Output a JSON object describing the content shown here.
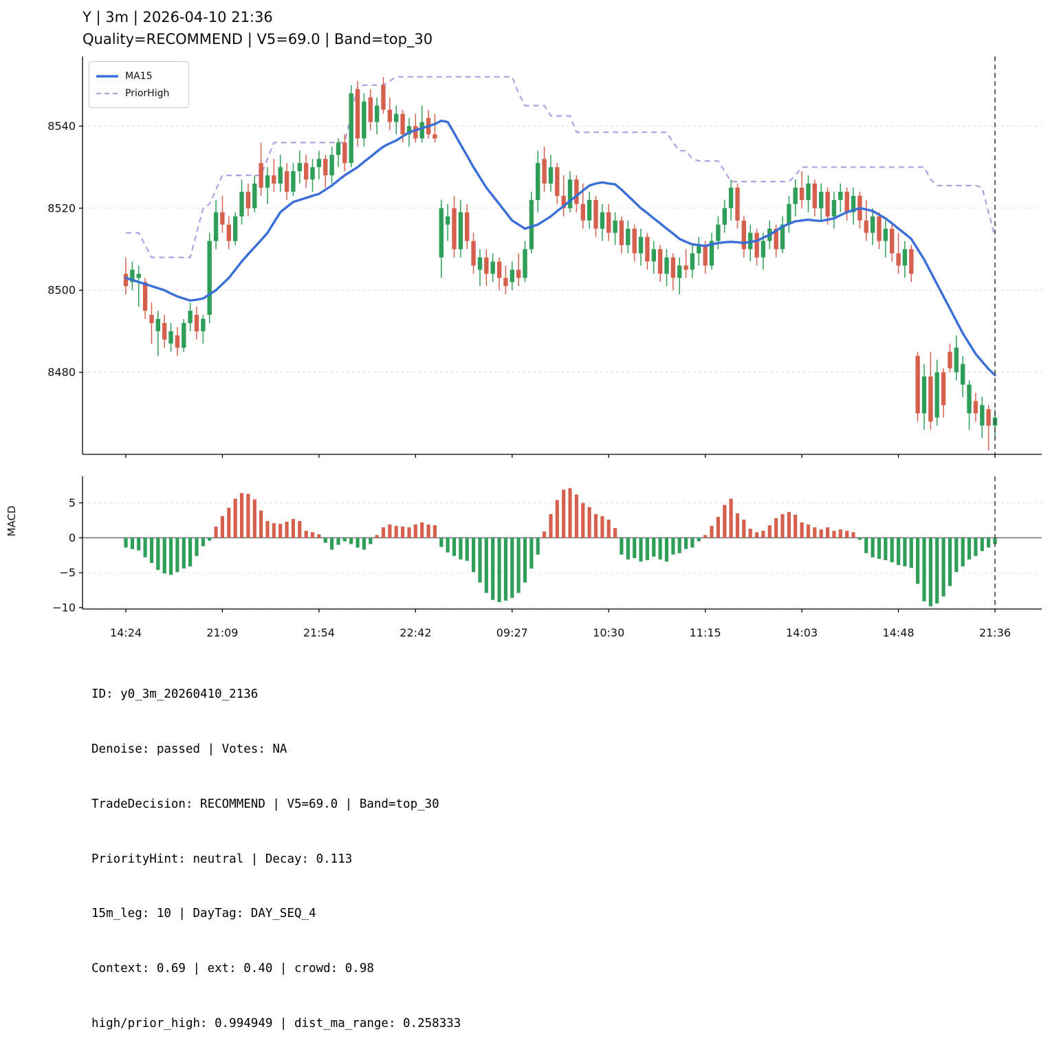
{
  "title": "Y | 3m | 2026-04-10 21:36",
  "subtitle": "Quality=RECOMMEND | V5=69.0 | Band=top_30",
  "legend": {
    "ma15_label": "MA15",
    "prior_high_label": "PriorHigh"
  },
  "footer": {
    "lines": [
      "ID: y0_3m_20260410_2136",
      "Denoise: passed | Votes: NA",
      "TradeDecision: RECOMMEND | V5=69.0 | Band=top_30",
      "PriorityHint: neutral | Decay: 0.113",
      "15m_leg: 10 | DayTag: DAY_SEQ_4",
      "Context: 0.69 | ext: 0.40 | crowd: 0.98",
      "high/prior_high: 0.994949 | dist_ma_range: 0.258333"
    ]
  },
  "colors": {
    "up": "#2f9e58",
    "down": "#d5604e",
    "ma15": "#3a6fd8",
    "prior_high": "#b49de0",
    "grid": "#dcdcdc",
    "zero_line": "#808080",
    "vline": "#3f3f3f",
    "axis": "#000000"
  },
  "chart_data": {
    "type": "candlestick+macd",
    "title": "Y | 3m | 2026-04-10 21:36",
    "macd_label": "MACD",
    "x_tick_labels": [
      "14:24",
      "21:09",
      "21:54",
      "22:42",
      "09:27",
      "10:30",
      "11:15",
      "14:03",
      "14:48",
      "21:36"
    ],
    "x_tick_indices": [
      0,
      15,
      30,
      45,
      60,
      75,
      90,
      105,
      120,
      135
    ],
    "price_axis": {
      "ticks": [
        8480,
        8500,
        8520,
        8540
      ],
      "ylim": [
        8460,
        8557
      ],
      "grid": true
    },
    "macd_axis": {
      "ticks": [
        -10,
        -5,
        0,
        5
      ],
      "ylim": [
        -10.2,
        8.8
      ],
      "grid": true
    },
    "legend_position": "upper-left",
    "last_bar_vline_index": 135,
    "candles": [
      [
        8504,
        8508,
        8499,
        8501
      ],
      [
        8502,
        8507,
        8500,
        8505
      ],
      [
        8503,
        8506,
        8496,
        8504
      ],
      [
        8502,
        8503,
        8493,
        8495
      ],
      [
        8494,
        8497,
        8487,
        8492
      ],
      [
        8490,
        8495,
        8484,
        8493
      ],
      [
        8492,
        8494,
        8486,
        8488
      ],
      [
        8487,
        8492,
        8485,
        8490
      ],
      [
        8489,
        8491,
        8484,
        8486
      ],
      [
        8486,
        8493,
        8485,
        8492
      ],
      [
        8492,
        8497,
        8490,
        8495
      ],
      [
        8494,
        8496,
        8488,
        8490
      ],
      [
        8490,
        8494,
        8487,
        8493
      ],
      [
        8494,
        8514,
        8492,
        8512
      ],
      [
        8512,
        8522,
        8510,
        8519
      ],
      [
        8519,
        8523,
        8514,
        8516
      ],
      [
        8516,
        8518,
        8510,
        8512
      ],
      [
        8512,
        8519,
        8511,
        8518
      ],
      [
        8518,
        8527,
        8516,
        8524
      ],
      [
        8524,
        8526,
        8518,
        8520
      ],
      [
        8520,
        8528,
        8519,
        8526
      ],
      [
        8531,
        8536,
        8523,
        8525
      ],
      [
        8525,
        8530,
        8521,
        8528
      ],
      [
        8528,
        8532,
        8524,
        8526
      ],
      [
        8526,
        8533,
        8524,
        8530
      ],
      [
        8529,
        8531,
        8522,
        8524
      ],
      [
        8524,
        8531,
        8523,
        8529
      ],
      [
        8529,
        8534,
        8526,
        8531
      ],
      [
        8531,
        8533,
        8525,
        8527
      ],
      [
        8527,
        8532,
        8524,
        8530
      ],
      [
        8530,
        8534,
        8527,
        8532
      ],
      [
        8532,
        8533,
        8525,
        8528
      ],
      [
        8528,
        8535,
        8526,
        8533
      ],
      [
        8533,
        8537,
        8530,
        8536
      ],
      [
        8536,
        8538,
        8529,
        8531
      ],
      [
        8531,
        8550,
        8530,
        8548
      ],
      [
        8549,
        8551,
        8535,
        8537
      ],
      [
        8537,
        8548,
        8535,
        8546
      ],
      [
        8547,
        8549,
        8539,
        8541
      ],
      [
        8541,
        8547,
        8538,
        8545
      ],
      [
        8550,
        8552,
        8543,
        8544
      ],
      [
        8544,
        8547,
        8539,
        8541
      ],
      [
        8541,
        8545,
        8538,
        8543
      ],
      [
        8543,
        8544,
        8536,
        8538
      ],
      [
        8538,
        8542,
        8535,
        8540
      ],
      [
        8540,
        8543,
        8536,
        8537
      ],
      [
        8537,
        8545,
        8536,
        8541
      ],
      [
        8542,
        8544,
        8537,
        8538
      ],
      [
        8538,
        8543,
        8536,
        8537
      ],
      [
        8508,
        8522,
        8503,
        8520
      ],
      [
        8516,
        8521,
        8512,
        8518
      ],
      [
        8520,
        8523,
        8508,
        8510
      ],
      [
        8510,
        8522,
        8508,
        8519
      ],
      [
        8519,
        8521,
        8510,
        8512
      ],
      [
        8512,
        8514,
        8504,
        8506
      ],
      [
        8505,
        8510,
        8501,
        8508
      ],
      [
        8508,
        8510,
        8501,
        8504
      ],
      [
        8504,
        8509,
        8502,
        8507
      ],
      [
        8507,
        8508,
        8500,
        8503
      ],
      [
        8503,
        8506,
        8499,
        8501
      ],
      [
        8502,
        8507,
        8500,
        8505
      ],
      [
        8505,
        8509,
        8501,
        8503
      ],
      [
        8503,
        8512,
        8502,
        8510
      ],
      [
        8510,
        8524,
        8509,
        8522
      ],
      [
        8522,
        8534,
        8519,
        8531
      ],
      [
        8532,
        8535,
        8524,
        8526
      ],
      [
        8526,
        8533,
        8524,
        8530
      ],
      [
        8530,
        8531,
        8521,
        8523
      ],
      [
        8523,
        8528,
        8518,
        8520
      ],
      [
        8520,
        8529,
        8519,
        8527
      ],
      [
        8527,
        8528,
        8519,
        8521
      ],
      [
        8521,
        8526,
        8515,
        8517
      ],
      [
        8517,
        8524,
        8515,
        8522
      ],
      [
        8522,
        8523,
        8513,
        8515
      ],
      [
        8515,
        8521,
        8512,
        8519
      ],
      [
        8519,
        8521,
        8512,
        8514
      ],
      [
        8514,
        8519,
        8511,
        8517
      ],
      [
        8517,
        8518,
        8509,
        8511
      ],
      [
        8511,
        8517,
        8509,
        8515
      ],
      [
        8515,
        8516,
        8507,
        8509
      ],
      [
        8509,
        8515,
        8506,
        8513
      ],
      [
        8513,
        8514,
        8505,
        8507
      ],
      [
        8507,
        8512,
        8504,
        8510
      ],
      [
        8510,
        8511,
        8502,
        8504
      ],
      [
        8504,
        8510,
        8501,
        8508
      ],
      [
        8508,
        8509,
        8500,
        8503
      ],
      [
        8503,
        8508,
        8499,
        8506
      ],
      [
        8506,
        8510,
        8503,
        8505
      ],
      [
        8505,
        8511,
        8503,
        8509
      ],
      [
        8509,
        8513,
        8506,
        8511
      ],
      [
        8511,
        8512,
        8504,
        8506
      ],
      [
        8506,
        8514,
        8505,
        8512
      ],
      [
        8512,
        8518,
        8510,
        8516
      ],
      [
        8516,
        8522,
        8514,
        8520
      ],
      [
        8520,
        8527,
        8517,
        8525
      ],
      [
        8525,
        8526,
        8515,
        8517
      ],
      [
        8517,
        8518,
        8508,
        8510
      ],
      [
        8510,
        8516,
        8507,
        8514
      ],
      [
        8514,
        8515,
        8506,
        8508
      ],
      [
        8508,
        8514,
        8505,
        8512
      ],
      [
        8512,
        8517,
        8510,
        8515
      ],
      [
        8515,
        8516,
        8508,
        8510
      ],
      [
        8510,
        8518,
        8509,
        8516
      ],
      [
        8516,
        8523,
        8514,
        8521
      ],
      [
        8521,
        8527,
        8518,
        8525
      ],
      [
        8525,
        8529,
        8520,
        8522
      ],
      [
        8522,
        8528,
        8519,
        8526
      ],
      [
        8526,
        8527,
        8518,
        8520
      ],
      [
        8520,
        8526,
        8517,
        8524
      ],
      [
        8524,
        8525,
        8516,
        8518
      ],
      [
        8518,
        8524,
        8515,
        8522
      ],
      [
        8522,
        8526,
        8519,
        8524
      ],
      [
        8524,
        8525,
        8517,
        8519
      ],
      [
        8519,
        8525,
        8516,
        8523
      ],
      [
        8523,
        8524,
        8515,
        8517
      ],
      [
        8517,
        8522,
        8512,
        8514
      ],
      [
        8514,
        8520,
        8511,
        8518
      ],
      [
        8518,
        8519,
        8510,
        8512
      ],
      [
        8512,
        8517,
        8508,
        8515
      ],
      [
        8515,
        8516,
        8507,
        8509
      ],
      [
        8509,
        8514,
        8504,
        8506
      ],
      [
        8506,
        8512,
        8503,
        8510
      ],
      [
        8510,
        8511,
        8502,
        8504
      ],
      [
        8484,
        8485,
        8468,
        8470
      ],
      [
        8470,
        8482,
        8466,
        8479
      ],
      [
        8479,
        8485,
        8466,
        8468
      ],
      [
        8469,
        8483,
        8467,
        8480
      ],
      [
        8480,
        8481,
        8469,
        8472
      ],
      [
        8485,
        8487,
        8480,
        8481
      ],
      [
        8480,
        8489,
        8478,
        8486
      ],
      [
        8477,
        8484,
        8474,
        8482
      ],
      [
        8470,
        8478,
        8466,
        8477
      ],
      [
        8473,
        8475,
        8468,
        8470
      ],
      [
        8467,
        8474,
        8464,
        8472
      ],
      [
        8471,
        8472,
        8461,
        8467
      ],
      [
        8467,
        8471,
        8464,
        8469
      ]
    ],
    "ma15": [
      8503,
      8502.5,
      8502,
      8501.5,
      8501,
      8500.5,
      8500,
      8499.2,
      8498.5,
      8498,
      8497.5,
      8497.7,
      8498,
      8499,
      8500,
      8501.5,
      8503,
      8505,
      8507,
      8508.8,
      8510.5,
      8512.2,
      8514,
      8516.5,
      8519,
      8520.3,
      8521.5,
      8522,
      8522.5,
      8523,
      8523.5,
      8524.5,
      8525.5,
      8526.8,
      8528,
      8529,
      8530,
      8531.3,
      8532.5,
      8533.8,
      8535,
      8535.8,
      8536.5,
      8537.5,
      8538.5,
      8539,
      8539.5,
      8540,
      8540.5,
      8541.3,
      8541,
      8538.3,
      8535.5,
      8532.8,
      8530,
      8527.5,
      8525,
      8523,
      8521,
      8519,
      8517,
      8516,
      8515,
      8515.5,
      8516,
      8517,
      8518,
      8519.3,
      8520.5,
      8521.8,
      8523,
      8524.3,
      8525.5,
      8526,
      8526.3,
      8526,
      8525.8,
      8524.5,
      8523,
      8521.5,
      8520,
      8518.8,
      8517.5,
      8516.3,
      8515,
      8513.8,
      8512.5,
      8511.8,
      8511.2,
      8511,
      8510.8,
      8511.2,
      8511.5,
      8511.7,
      8511.8,
      8511.7,
      8511.5,
      8511.8,
      8512,
      8512.8,
      8513.5,
      8514.5,
      8515.5,
      8516.2,
      8516.8,
      8517,
      8517.2,
      8517,
      8516.9,
      8517.2,
      8517.5,
      8518.3,
      8519,
      8519.5,
      8520,
      8519.7,
      8519.3,
      8518.4,
      8517.5,
      8516.3,
      8515,
      8513.8,
      8512.5,
      8510,
      8507.5,
      8504.5,
      8501.5,
      8498.5,
      8495.5,
      8492.5,
      8489.5,
      8487,
      8484.5,
      8482.6,
      8480.8,
      8479.3
    ],
    "prior_high": [
      8514,
      8514,
      8514,
      8511,
      8508,
      8508,
      8508,
      8508,
      8508,
      8508,
      8508,
      8514,
      8520,
      8521,
      8524.5,
      8528,
      8528,
      8528,
      8528,
      8528,
      8528,
      8528,
      8532,
      8536,
      8536,
      8536,
      8536,
      8536,
      8536,
      8536,
      8536,
      8536,
      8536,
      8536,
      8536,
      8543,
      8549.5,
      8550,
      8550,
      8550,
      8550,
      8551,
      8552,
      8552,
      8552,
      8552,
      8552,
      8552,
      8552,
      8552,
      8552,
      8552,
      8552,
      8552,
      8552,
      8552,
      8552,
      8552,
      8552,
      8552,
      8552,
      8548,
      8545,
      8545,
      8545,
      8545,
      8542.5,
      8542.5,
      8542.5,
      8542.5,
      8538.5,
      8538.5,
      8538.5,
      8538.5,
      8538.5,
      8538.5,
      8538.5,
      8538.5,
      8538.5,
      8538.5,
      8538.5,
      8538.5,
      8538.5,
      8538.5,
      8538.5,
      8536,
      8534,
      8534,
      8532,
      8531.5,
      8531.5,
      8531.5,
      8531.5,
      8529,
      8526.5,
      8526.5,
      8526.5,
      8526.5,
      8526.5,
      8526.5,
      8526.5,
      8526.5,
      8526.5,
      8526.5,
      8528,
      8530,
      8530,
      8530,
      8530,
      8530,
      8530,
      8530,
      8530,
      8530,
      8530,
      8530,
      8530,
      8530,
      8530,
      8530,
      8530,
      8530,
      8530,
      8530,
      8530,
      8527,
      8525.5,
      8525.5,
      8525.5,
      8525.5,
      8525.5,
      8525.5,
      8525.5,
      8525,
      8519,
      8513
    ],
    "macd": [
      -1.4,
      -1.6,
      -1.8,
      -2.8,
      -3.6,
      -4.6,
      -5.1,
      -5.3,
      -4.9,
      -4.4,
      -4.1,
      -2.6,
      -1.2,
      -0.4,
      1.6,
      3.1,
      4.3,
      5.6,
      6.4,
      6.3,
      5.5,
      3.9,
      2.4,
      2.1,
      2.0,
      2.3,
      2.7,
      2.4,
      1.0,
      0.8,
      0.5,
      -0.7,
      -1.7,
      -1.0,
      -0.5,
      -0.9,
      -1.4,
      -1.7,
      -0.9,
      0.4,
      1.5,
      1.9,
      1.7,
      1.6,
      1.5,
      1.9,
      2.2,
      1.9,
      1.8,
      -1.3,
      -2.1,
      -2.6,
      -3.1,
      -3.3,
      -4.9,
      -6.4,
      -7.9,
      -8.9,
      -9.2,
      -9.0,
      -8.6,
      -7.9,
      -6.4,
      -4.4,
      -2.4,
      0.9,
      3.4,
      5.4,
      6.9,
      7.1,
      6.2,
      5.0,
      4.4,
      3.4,
      3.1,
      2.6,
      1.4,
      -2.4,
      -3.1,
      -2.9,
      -3.4,
      -3.2,
      -2.7,
      -3.1,
      -3.4,
      -2.4,
      -2.2,
      -1.6,
      -1.4,
      -0.5,
      0.4,
      1.7,
      3.0,
      4.7,
      5.6,
      3.5,
      2.6,
      1.3,
      0.8,
      1.0,
      1.8,
      2.8,
      3.4,
      3.7,
      3.3,
      2.2,
      1.9,
      1.5,
      1.2,
      1.5,
      1.0,
      1.2,
      1.0,
      0.8,
      -0.3,
      -2.2,
      -2.8,
      -3.0,
      -3.2,
      -3.5,
      -3.9,
      -4.1,
      -4.3,
      -6.6,
      -9.1,
      -9.8,
      -9.4,
      -8.4,
      -6.9,
      -4.9,
      -4.1,
      -3.1,
      -2.6,
      -1.9,
      -1.4,
      -0.9
    ]
  }
}
